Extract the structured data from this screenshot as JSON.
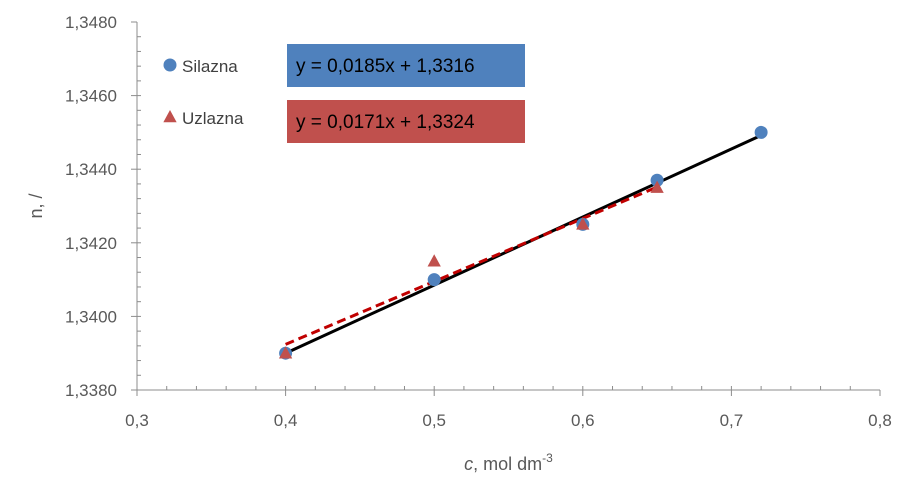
{
  "chart_data": {
    "type": "scatter",
    "title": "",
    "xlabel": {
      "italic": "c",
      "text": ", mol dm",
      "sup": "-3"
    },
    "ylabel": "n, /",
    "xlim": [
      0.3,
      0.8
    ],
    "ylim": [
      1.338,
      1.348
    ],
    "x_ticks": [
      "0,3",
      "0,4",
      "0,5",
      "0,6",
      "0,7",
      "0,8"
    ],
    "y_ticks": [
      "1,3380",
      "1,3400",
      "1,3420",
      "1,3440",
      "1,3460",
      "1,3480"
    ],
    "grid": false,
    "legend_position": "top-left",
    "series": [
      {
        "name": "Silazna",
        "marker": "circle",
        "color": "#4f81bd",
        "points": [
          [
            0.4,
            1.339
          ],
          [
            0.5,
            1.341
          ],
          [
            0.6,
            1.3425
          ],
          [
            0.65,
            1.3437
          ],
          [
            0.72,
            1.345
          ]
        ],
        "trendline": {
          "slope": 0.0185,
          "intercept": 1.3316,
          "x_range": [
            0.4,
            0.72
          ],
          "style": "solid",
          "color": "#000000"
        },
        "equation": "y = 0,0185x + 1,3316",
        "equation_bg": "#4f81bd"
      },
      {
        "name": "Uzlazna",
        "marker": "triangle",
        "color": "#c0504d",
        "points": [
          [
            0.4,
            1.339
          ],
          [
            0.5,
            1.3415
          ],
          [
            0.6,
            1.3425
          ],
          [
            0.65,
            1.3435
          ]
        ],
        "trendline": {
          "slope": 0.0171,
          "intercept": 1.3324,
          "x_range": [
            0.4,
            0.65
          ],
          "style": "dashed",
          "color": "#c00000"
        },
        "equation": "y = 0,0171x + 1,3324",
        "equation_bg": "#c0504d"
      }
    ]
  }
}
